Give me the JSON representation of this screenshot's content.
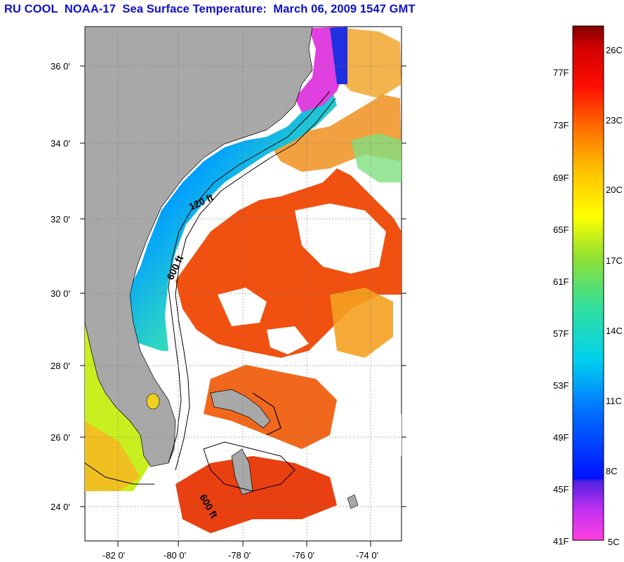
{
  "title": "RU COOL  NOAA-17  Sea Surface Temperature:  March 06, 2009 1547 GMT",
  "map": {
    "lat_ticks": [
      "36 0'",
      "34 0'",
      "32 0'",
      "30 0'",
      "28 0'",
      "26 0'",
      "24 0'"
    ],
    "lon_ticks": [
      "-82 0'",
      "-80 0'",
      "-78 0'",
      "-76 0'",
      "-74 0'"
    ],
    "contours": [
      {
        "label": "120 ft"
      },
      {
        "label": "600 ft"
      },
      {
        "label": "600 ft"
      }
    ],
    "colors": {
      "land": "#a8a8a8",
      "cold_coastal": "#1a6ee8",
      "warm_gulfstream": "#f04010"
    }
  },
  "colorbar": {
    "fahrenheit_labels": [
      "77F",
      "73F",
      "69F",
      "65F",
      "61F",
      "57F",
      "53F",
      "49F",
      "45F",
      "41F"
    ],
    "celsius_labels": [
      "26C",
      "23C",
      "20C",
      "17C",
      "14C",
      "11C",
      "8C",
      "5C"
    ],
    "range_f": [
      41,
      80
    ],
    "range_c": [
      5,
      27
    ]
  }
}
